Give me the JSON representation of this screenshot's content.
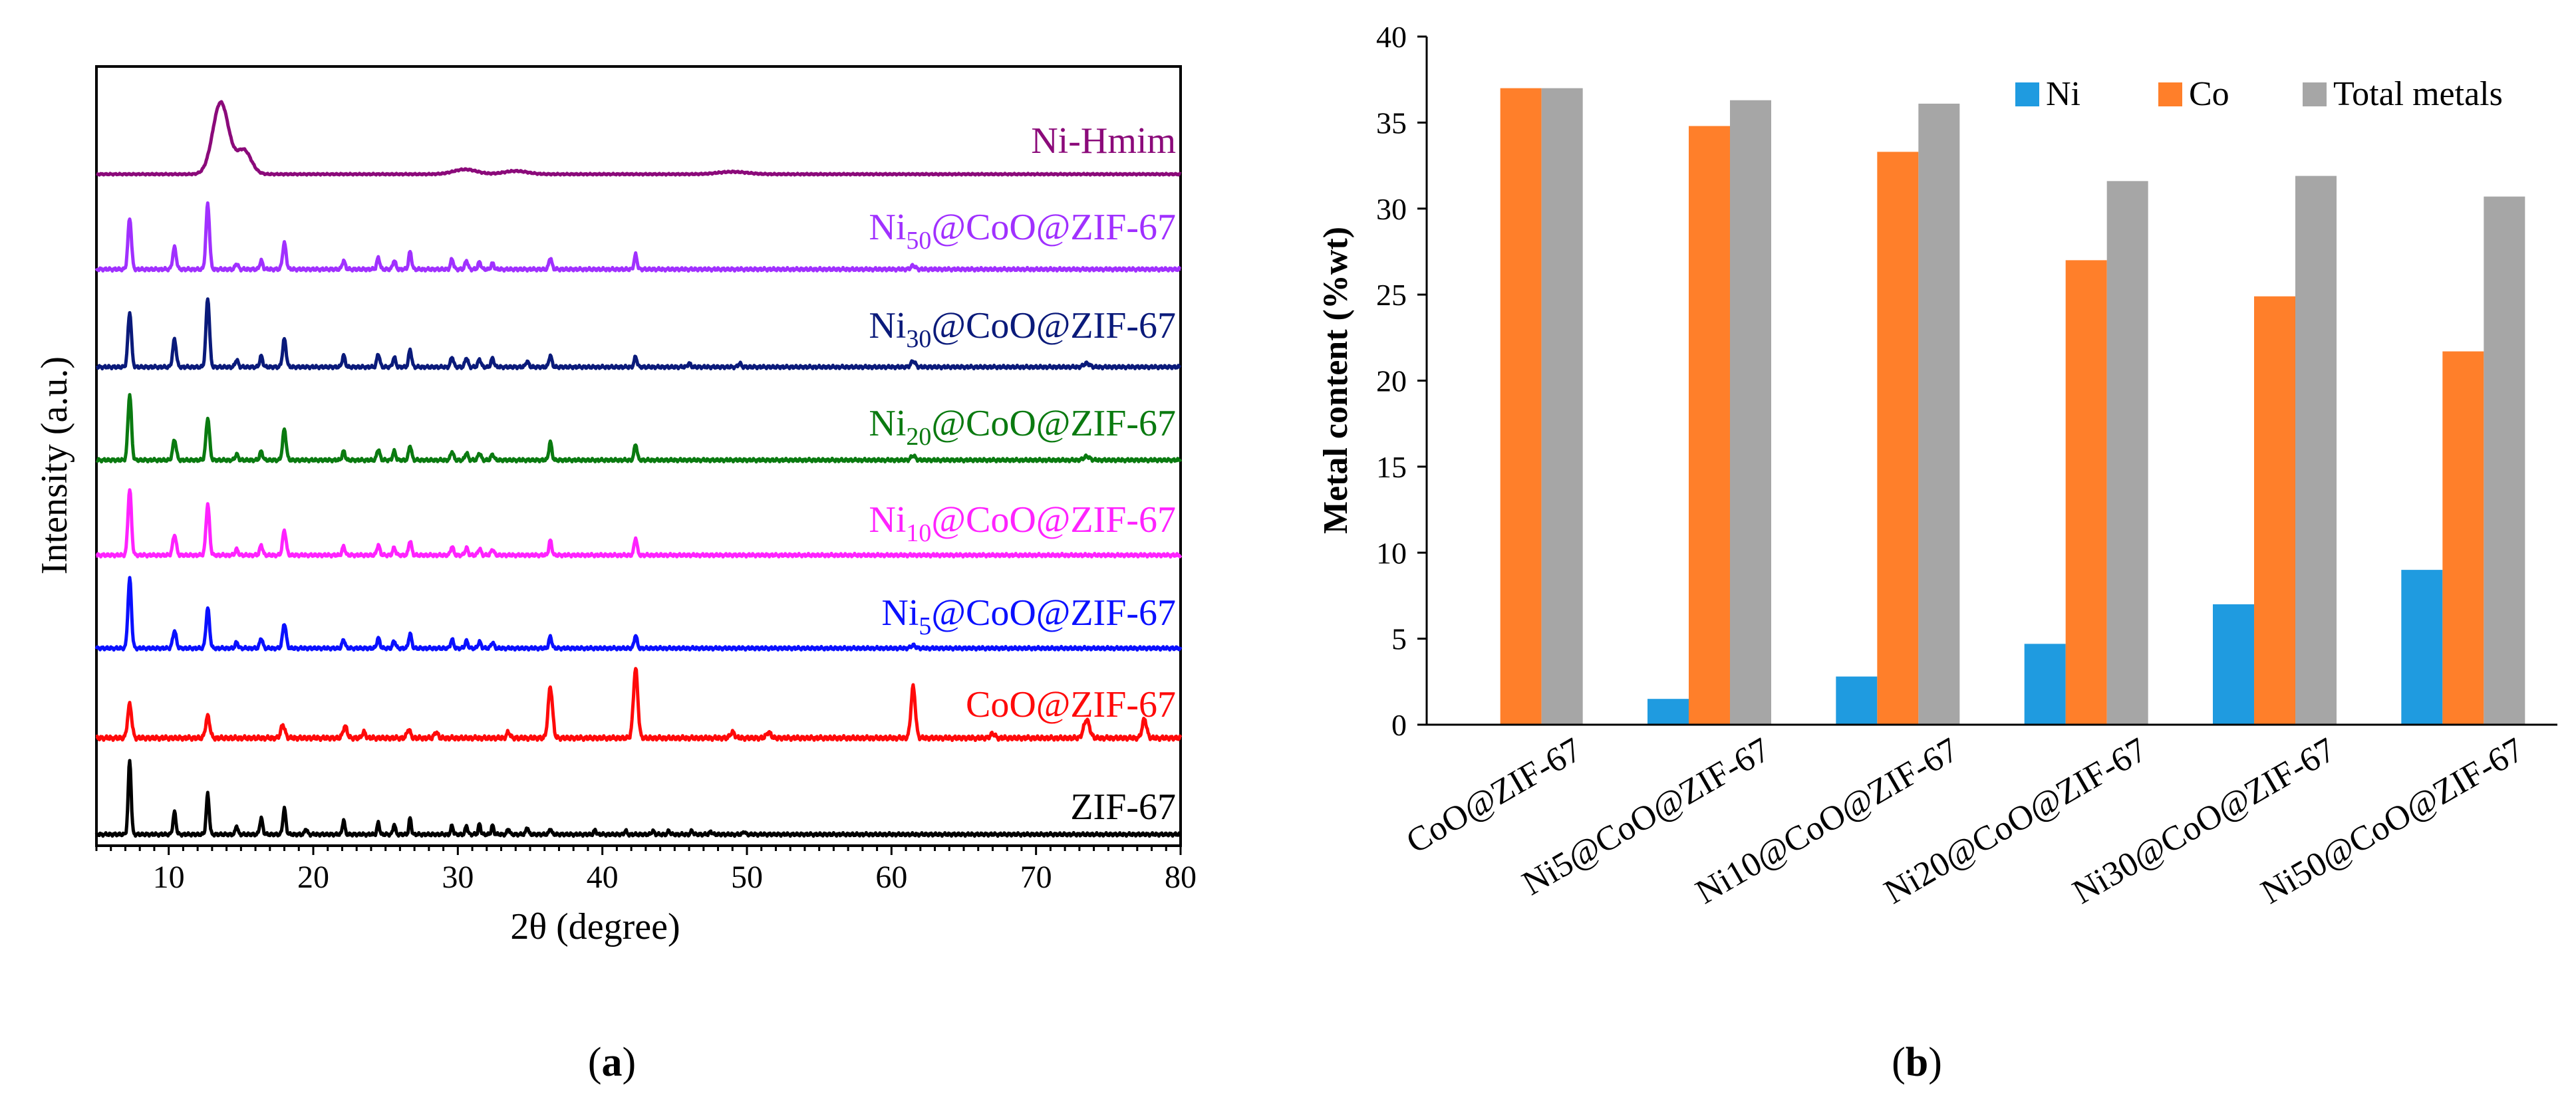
{
  "colors": {
    "ni_hmim": "#8B0A7A",
    "ni50": "#A030FF",
    "ni30": "#0A1A7A",
    "ni20": "#0A7A10",
    "ni10": "#FF22FF",
    "ni5": "#0A10FF",
    "coo": "#FF0A0A",
    "zif": "#000000",
    "bar_ni": "#1F9BE0",
    "bar_co": "#FF7F2A",
    "bar_total": "#A6A6A6"
  },
  "chart_data": [
    {
      "type": "line",
      "panel_label": "a",
      "xlabel": "2θ (degree)",
      "ylabel": "Intensity (a.u.)",
      "xlim": [
        5,
        80
      ],
      "xticks": [
        10,
        20,
        30,
        40,
        50,
        60,
        70,
        80
      ],
      "series": [
        {
          "name": "Ni-Hmim",
          "label_main": "Ni-Hmim",
          "label_sub": "",
          "label_tail": "",
          "color_key": "ni_hmim",
          "peaks": [
            [
              13.6,
              0.9,
              0.55
            ],
            [
              15.2,
              0.3,
              0.5
            ],
            [
              30.5,
              0.06,
              0.8
            ],
            [
              34.0,
              0.04,
              0.8
            ],
            [
              49.0,
              0.03,
              1.0
            ]
          ]
        },
        {
          "name": "Ni50@CoO@ZIF-67",
          "label_main": "Ni",
          "label_sub": "50",
          "label_tail": "@CoO@ZIF-67",
          "color_key": "ni50",
          "peaks": [
            [
              7.3,
              0.7,
              0.12
            ],
            [
              10.4,
              0.3,
              0.12
            ],
            [
              12.7,
              0.9,
              0.12
            ],
            [
              14.7,
              0.08,
              0.1
            ],
            [
              16.4,
              0.12,
              0.1
            ],
            [
              18.0,
              0.36,
              0.12
            ],
            [
              22.1,
              0.12,
              0.1
            ],
            [
              24.5,
              0.16,
              0.1
            ],
            [
              25.6,
              0.12,
              0.1
            ],
            [
              26.7,
              0.24,
              0.1
            ],
            [
              29.6,
              0.14,
              0.1
            ],
            [
              30.6,
              0.12,
              0.1
            ],
            [
              31.5,
              0.1,
              0.1
            ],
            [
              32.4,
              0.08,
              0.1
            ],
            [
              36.4,
              0.16,
              0.1
            ],
            [
              42.3,
              0.2,
              0.1
            ],
            [
              61.5,
              0.05,
              0.15
            ]
          ]
        },
        {
          "name": "Ni30@CoO@ZIF-67",
          "label_main": "Ni",
          "label_sub": "30",
          "label_tail": "@CoO@ZIF-67",
          "color_key": "ni30",
          "peaks": [
            [
              7.3,
              0.75,
              0.12
            ],
            [
              10.4,
              0.38,
              0.12
            ],
            [
              12.7,
              0.95,
              0.12
            ],
            [
              14.7,
              0.1,
              0.1
            ],
            [
              16.4,
              0.15,
              0.1
            ],
            [
              18.0,
              0.38,
              0.12
            ],
            [
              22.1,
              0.16,
              0.1
            ],
            [
              24.5,
              0.18,
              0.1
            ],
            [
              25.6,
              0.13,
              0.1
            ],
            [
              26.7,
              0.24,
              0.1
            ],
            [
              29.6,
              0.14,
              0.1
            ],
            [
              30.6,
              0.13,
              0.1
            ],
            [
              31.5,
              0.11,
              0.1
            ],
            [
              32.4,
              0.12,
              0.1
            ],
            [
              34.8,
              0.08,
              0.1
            ],
            [
              36.4,
              0.16,
              0.1
            ],
            [
              42.3,
              0.14,
              0.1
            ],
            [
              46.0,
              0.05,
              0.1
            ],
            [
              49.5,
              0.05,
              0.1
            ],
            [
              61.5,
              0.08,
              0.15
            ],
            [
              73.5,
              0.05,
              0.2
            ]
          ]
        },
        {
          "name": "Ni20@CoO@ZIF-67",
          "label_main": "Ni",
          "label_sub": "20",
          "label_tail": "@CoO@ZIF-67",
          "color_key": "ni20",
          "peaks": [
            [
              7.3,
              0.9,
              0.12
            ],
            [
              10.4,
              0.28,
              0.12
            ],
            [
              12.7,
              0.58,
              0.12
            ],
            [
              14.7,
              0.08,
              0.1
            ],
            [
              16.4,
              0.12,
              0.1
            ],
            [
              18.0,
              0.42,
              0.12
            ],
            [
              22.1,
              0.12,
              0.1
            ],
            [
              24.5,
              0.15,
              0.1
            ],
            [
              25.6,
              0.12,
              0.1
            ],
            [
              26.7,
              0.2,
              0.1
            ],
            [
              29.6,
              0.12,
              0.1
            ],
            [
              30.6,
              0.1,
              0.1
            ],
            [
              31.5,
              0.1,
              0.1
            ],
            [
              32.4,
              0.08,
              0.1
            ],
            [
              36.4,
              0.25,
              0.1
            ],
            [
              42.3,
              0.22,
              0.1
            ],
            [
              61.5,
              0.06,
              0.15
            ],
            [
              73.5,
              0.05,
              0.2
            ]
          ]
        },
        {
          "name": "Ni10@CoO@ZIF-67",
          "label_main": "Ni",
          "label_sub": "10",
          "label_tail": "@CoO@ZIF-67",
          "color_key": "ni10",
          "peaks": [
            [
              7.3,
              0.9,
              0.12
            ],
            [
              10.4,
              0.28,
              0.12
            ],
            [
              12.7,
              0.7,
              0.12
            ],
            [
              14.7,
              0.08,
              0.1
            ],
            [
              16.4,
              0.14,
              0.1
            ],
            [
              18.0,
              0.34,
              0.12
            ],
            [
              22.1,
              0.12,
              0.1
            ],
            [
              24.5,
              0.14,
              0.1
            ],
            [
              25.6,
              0.1,
              0.1
            ],
            [
              26.7,
              0.2,
              0.1
            ],
            [
              29.6,
              0.12,
              0.1
            ],
            [
              30.6,
              0.1,
              0.1
            ],
            [
              31.5,
              0.09,
              0.1
            ],
            [
              32.4,
              0.08,
              0.1
            ],
            [
              36.4,
              0.2,
              0.1
            ],
            [
              42.3,
              0.24,
              0.1
            ]
          ]
        },
        {
          "name": "Ni5@CoO@ZIF-67",
          "label_main": "Ni",
          "label_sub": "5",
          "label_tail": "@CoO@ZIF-67",
          "color_key": "ni5",
          "peaks": [
            [
              7.3,
              0.95,
              0.12
            ],
            [
              10.4,
              0.24,
              0.12
            ],
            [
              12.7,
              0.55,
              0.12
            ],
            [
              14.7,
              0.08,
              0.1
            ],
            [
              16.4,
              0.14,
              0.1
            ],
            [
              18.0,
              0.34,
              0.12
            ],
            [
              22.1,
              0.12,
              0.1
            ],
            [
              24.5,
              0.14,
              0.1
            ],
            [
              25.6,
              0.1,
              0.1
            ],
            [
              26.7,
              0.2,
              0.1
            ],
            [
              29.6,
              0.12,
              0.1
            ],
            [
              30.6,
              0.1,
              0.1
            ],
            [
              31.5,
              0.09,
              0.1
            ],
            [
              32.4,
              0.08,
              0.1
            ],
            [
              36.4,
              0.16,
              0.1
            ],
            [
              42.3,
              0.18,
              0.1
            ],
            [
              61.5,
              0.04,
              0.15
            ]
          ]
        },
        {
          "name": "CoO@ZIF-67",
          "label_main": "CoO@ZIF-67",
          "label_sub": "",
          "label_tail": "",
          "color_key": "coo",
          "peaks": [
            [
              7.3,
              0.46,
              0.14
            ],
            [
              12.7,
              0.3,
              0.14
            ],
            [
              17.9,
              0.18,
              0.14
            ],
            [
              22.2,
              0.16,
              0.14
            ],
            [
              23.5,
              0.08,
              0.12
            ],
            [
              26.6,
              0.12,
              0.12
            ],
            [
              28.5,
              0.08,
              0.12
            ],
            [
              33.5,
              0.08,
              0.12
            ],
            [
              36.4,
              0.7,
              0.15
            ],
            [
              42.3,
              0.95,
              0.15
            ],
            [
              49.0,
              0.08,
              0.15
            ],
            [
              51.5,
              0.08,
              0.15
            ],
            [
              61.5,
              0.7,
              0.15
            ],
            [
              67.0,
              0.06,
              0.15
            ],
            [
              73.5,
              0.25,
              0.2
            ],
            [
              77.5,
              0.26,
              0.15
            ]
          ]
        },
        {
          "name": "ZIF-67",
          "label_main": "ZIF-67",
          "label_sub": "",
          "label_tail": "",
          "color_key": "zif",
          "peaks": [
            [
              7.3,
              1.0,
              0.1
            ],
            [
              10.4,
              0.3,
              0.1
            ],
            [
              12.7,
              0.55,
              0.1
            ],
            [
              14.7,
              0.12,
              0.08
            ],
            [
              16.4,
              0.22,
              0.1
            ],
            [
              18.0,
              0.35,
              0.1
            ],
            [
              19.5,
              0.08,
              0.08
            ],
            [
              22.1,
              0.2,
              0.08
            ],
            [
              24.5,
              0.16,
              0.08
            ],
            [
              25.6,
              0.14,
              0.08
            ],
            [
              26.7,
              0.22,
              0.08
            ],
            [
              29.6,
              0.12,
              0.08
            ],
            [
              30.6,
              0.12,
              0.08
            ],
            [
              31.5,
              0.14,
              0.08
            ],
            [
              32.4,
              0.12,
              0.08
            ],
            [
              33.5,
              0.08,
              0.08
            ],
            [
              34.8,
              0.1,
              0.08
            ],
            [
              36.4,
              0.08,
              0.08
            ],
            [
              39.5,
              0.06,
              0.08
            ],
            [
              41.6,
              0.05,
              0.08
            ],
            [
              43.5,
              0.05,
              0.08
            ],
            [
              44.6,
              0.05,
              0.08
            ],
            [
              46.2,
              0.05,
              0.08
            ],
            [
              47.5,
              0.04,
              0.08
            ],
            [
              49.8,
              0.04,
              0.08
            ]
          ]
        }
      ]
    },
    {
      "type": "bar",
      "panel_label": "b",
      "ylabel": "Metal  content (%wt)",
      "ylim": [
        0,
        40
      ],
      "yticks": [
        0,
        5,
        10,
        15,
        20,
        25,
        30,
        35,
        40
      ],
      "categories": [
        "CoO@ZIF-67",
        "Ni5@CoO@ZIF-67",
        "Ni10@CoO@ZIF-67",
        "Ni20@CoO@ZIF-67",
        "Ni30@CoO@ZIF-67",
        "Ni50@CoO@ZIF-67"
      ],
      "series": [
        {
          "name": "Ni",
          "color_key": "bar_ni",
          "values": [
            0,
            1.5,
            2.8,
            4.7,
            7.0,
            9.0
          ]
        },
        {
          "name": "Co",
          "color_key": "bar_co",
          "values": [
            37.0,
            34.8,
            33.3,
            27.0,
            24.9,
            21.7
          ]
        },
        {
          "name": "Total metals",
          "color_key": "bar_total",
          "values": [
            37.0,
            36.3,
            36.1,
            31.6,
            31.9,
            30.7
          ]
        }
      ],
      "legend": "top-right"
    }
  ]
}
